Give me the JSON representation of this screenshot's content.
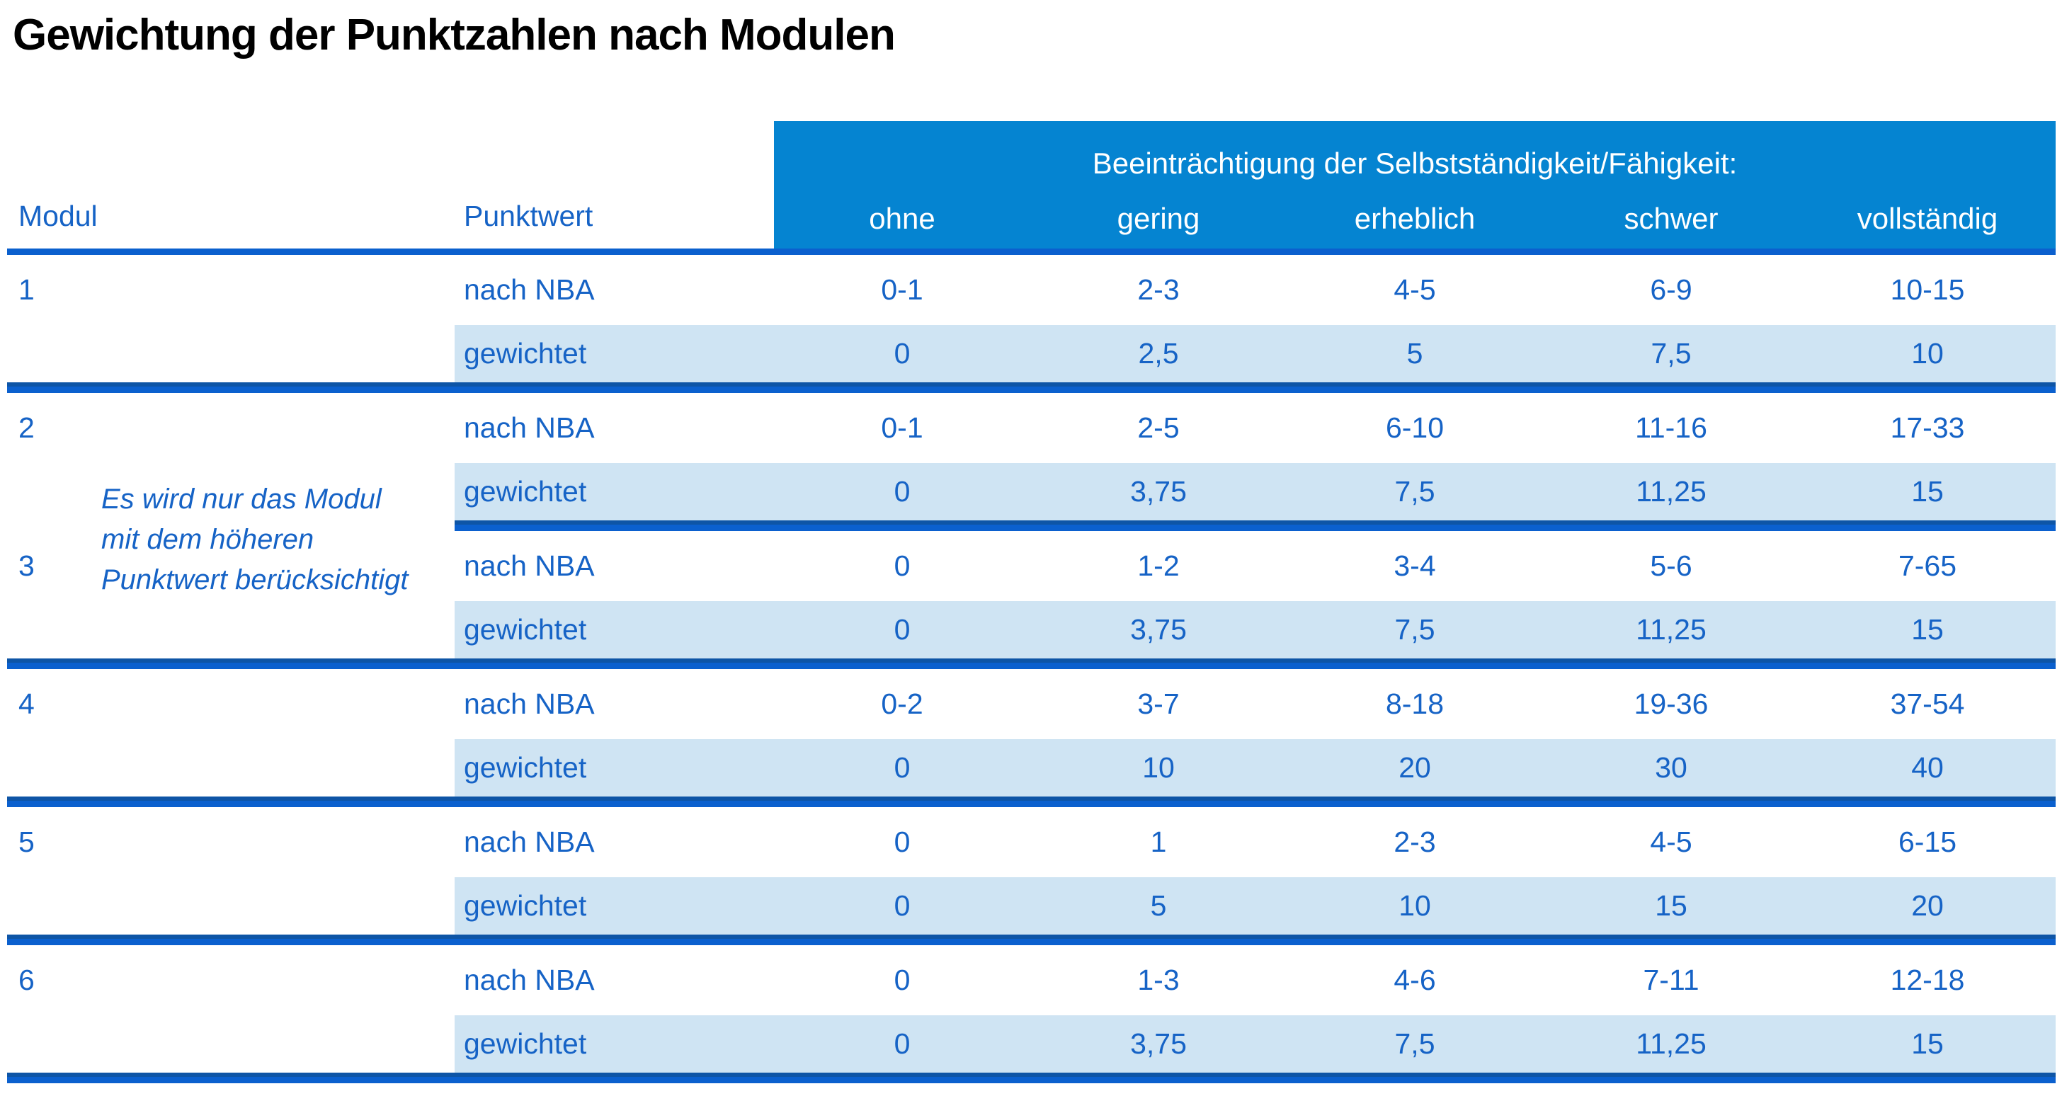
{
  "title": "Gewichtung der Punktzahlen nach Modulen",
  "table": {
    "col_headers": {
      "modul": "Modul",
      "punktwert": "Punktwert"
    },
    "banner": "Beeinträchtigung der Selbstständigkeit/Fähigkeit:",
    "severity_labels": [
      "ohne",
      "gering",
      "erheblich",
      "schwer",
      "vollständig"
    ],
    "row_labels": {
      "nba": "nach NBA",
      "weighted": "gewichtet"
    },
    "note": [
      "Es wird nur das Modul",
      "mit dem höheren",
      "Punktwert berücksichtigt"
    ],
    "modules": [
      {
        "id": "1",
        "nba": [
          "0-1",
          "2-3",
          "4-5",
          "6-9",
          "10-15"
        ],
        "weighted": [
          "0",
          "2,5",
          "5",
          "7,5",
          "10"
        ]
      },
      {
        "id": "2",
        "nba": [
          "0-1",
          "2-5",
          "6-10",
          "11-16",
          "17-33"
        ],
        "weighted": [
          "0",
          "3,75",
          "7,5",
          "11,25",
          "15"
        ]
      },
      {
        "id": "3",
        "nba": [
          "0",
          "1-2",
          "3-4",
          "5-6",
          "7-65"
        ],
        "weighted": [
          "0",
          "3,75",
          "7,5",
          "11,25",
          "15"
        ]
      },
      {
        "id": "4",
        "nba": [
          "0-2",
          "3-7",
          "8-18",
          "19-36",
          "37-54"
        ],
        "weighted": [
          "0",
          "10",
          "20",
          "30",
          "40"
        ]
      },
      {
        "id": "5",
        "nba": [
          "0",
          "1",
          "2-3",
          "4-5",
          "6-15"
        ],
        "weighted": [
          "0",
          "5",
          "10",
          "15",
          "20"
        ]
      },
      {
        "id": "6",
        "nba": [
          "0",
          "1-3",
          "4-6",
          "7-11",
          "12-18"
        ],
        "weighted": [
          "0",
          "3,75",
          "7,5",
          "11,25",
          "15"
        ]
      }
    ]
  },
  "colors": {
    "header_bg": "#0584D1",
    "row_alt_bg": "#CFE4F3",
    "line_bright": "#0B60CE",
    "line_dark": "#0E55A6",
    "text_blue": "#1663C6",
    "title_text": "#000000",
    "banner_text": "#FFFFFF"
  }
}
